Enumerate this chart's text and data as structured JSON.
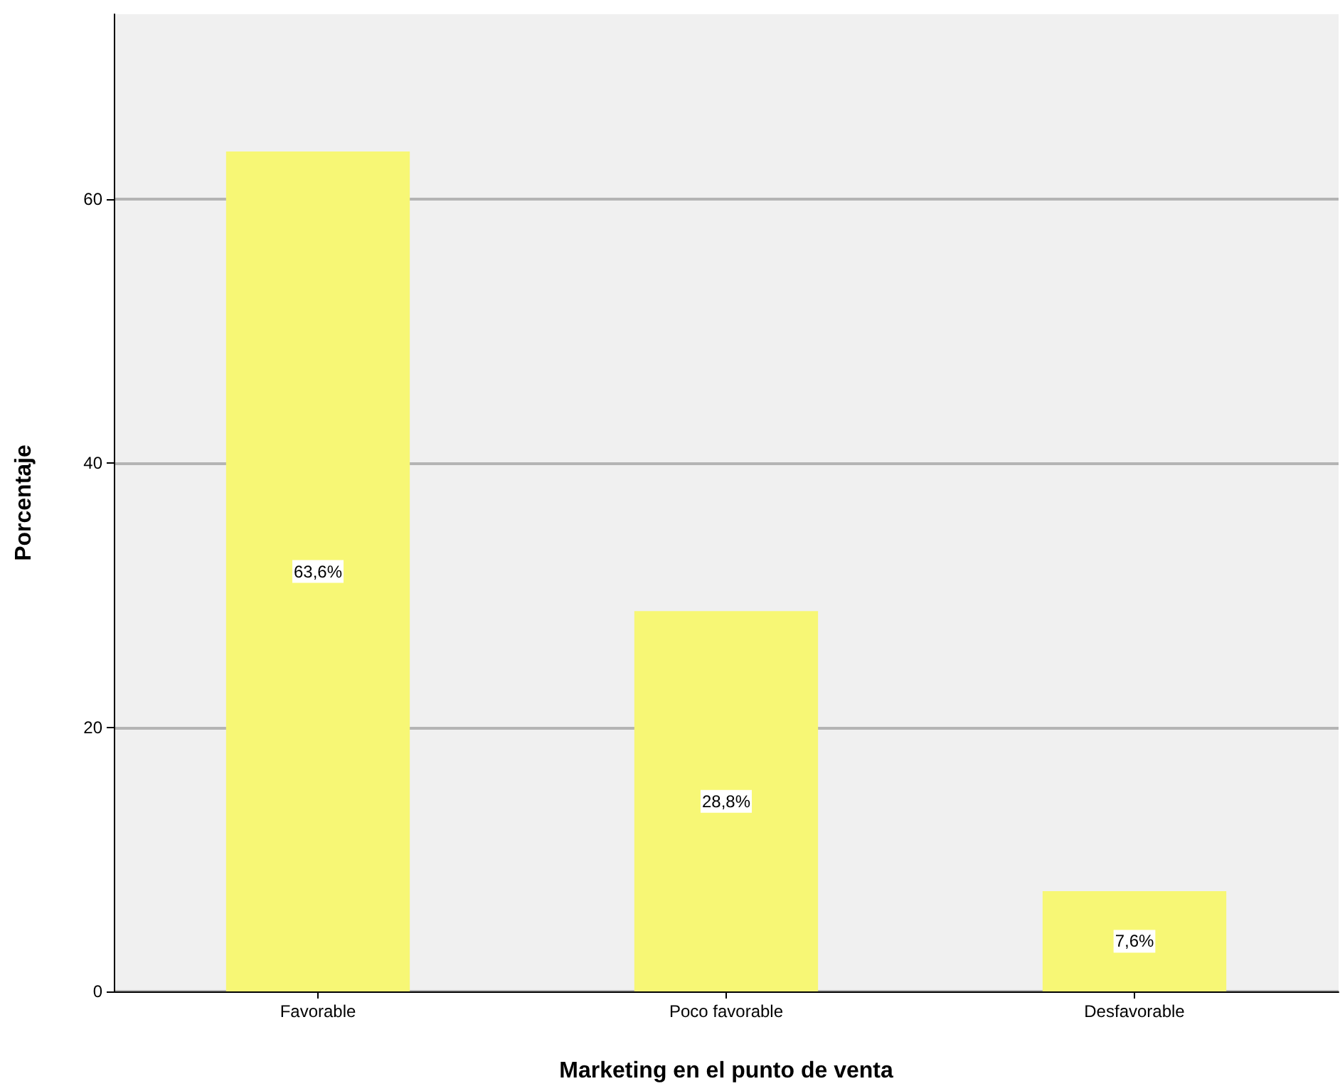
{
  "chart_data": {
    "type": "bar",
    "xlabel": "Marketing en el punto de venta",
    "ylabel": "Porcentaje",
    "categories": [
      "Favorable",
      "Poco favorable",
      "Desfavorable"
    ],
    "values": [
      63.6,
      28.8,
      7.6
    ],
    "color": "#f7f775",
    "value_labels": [
      "63,6%",
      "28,8%",
      "7,6%"
    ],
    "ylim": [
      0,
      74
    ],
    "yticks": [
      0,
      20,
      40,
      60
    ],
    "grid": "y"
  }
}
